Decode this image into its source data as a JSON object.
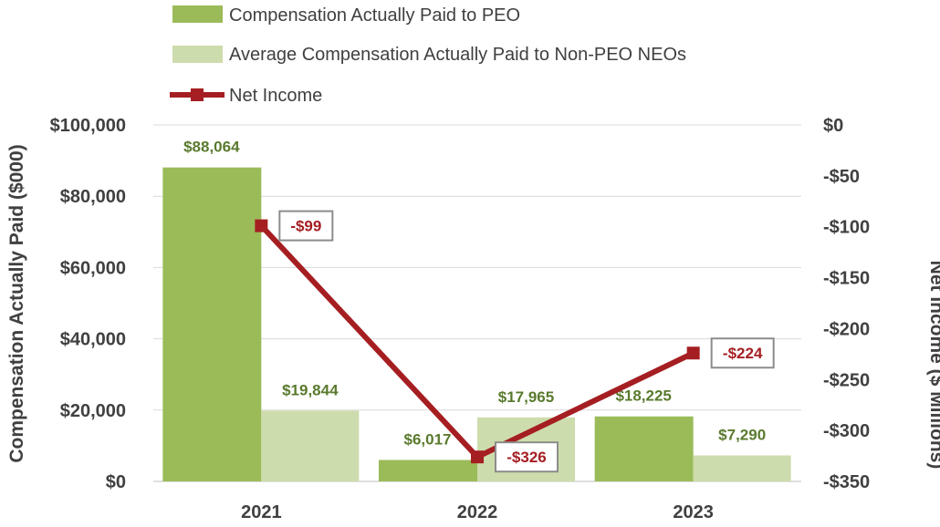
{
  "chart_data": {
    "type": "bar",
    "categories": [
      "2021",
      "2022",
      "2023"
    ],
    "series": [
      {
        "name": "Compensation Actually Paid to PEO",
        "kind": "bar",
        "axis": "left",
        "color": "#9bbb59",
        "values": [
          88064,
          6017,
          18225
        ],
        "labels": [
          "$88,064",
          "$6,017",
          "$18,225"
        ]
      },
      {
        "name": "Average Compensation Actually Paid to Non-PEO NEOs",
        "kind": "bar",
        "axis": "left",
        "color": "#cddcac",
        "values": [
          19844,
          17965,
          7290
        ],
        "labels": [
          "$19,844",
          "$17,965",
          "$7,290"
        ]
      },
      {
        "name": "Net Income",
        "kind": "line",
        "axis": "right",
        "color": "#a51e22",
        "values": [
          -99,
          -326,
          -224
        ],
        "labels": [
          "-$99",
          "-$326",
          "-$224"
        ]
      }
    ],
    "ylabel": "Compensation Actually Paid ($000)",
    "y2label": "Net Income ($ Millions)",
    "ylim": [
      0,
      100000
    ],
    "y2lim": [
      -350,
      0
    ],
    "yticks": [
      0,
      20000,
      40000,
      60000,
      80000,
      100000
    ],
    "ytick_labels": [
      "$0",
      "$20,000",
      "$40,000",
      "$60,000",
      "$80,000",
      "$100,000"
    ],
    "y2ticks": [
      0,
      -50,
      -100,
      -150,
      -200,
      -250,
      -300,
      -350
    ],
    "y2tick_labels": [
      "$0",
      "-$50",
      "-$100",
      "-$150",
      "-$200",
      "-$250",
      "-$300",
      "-$350"
    ],
    "grid": true,
    "legend_position": "top-left"
  }
}
